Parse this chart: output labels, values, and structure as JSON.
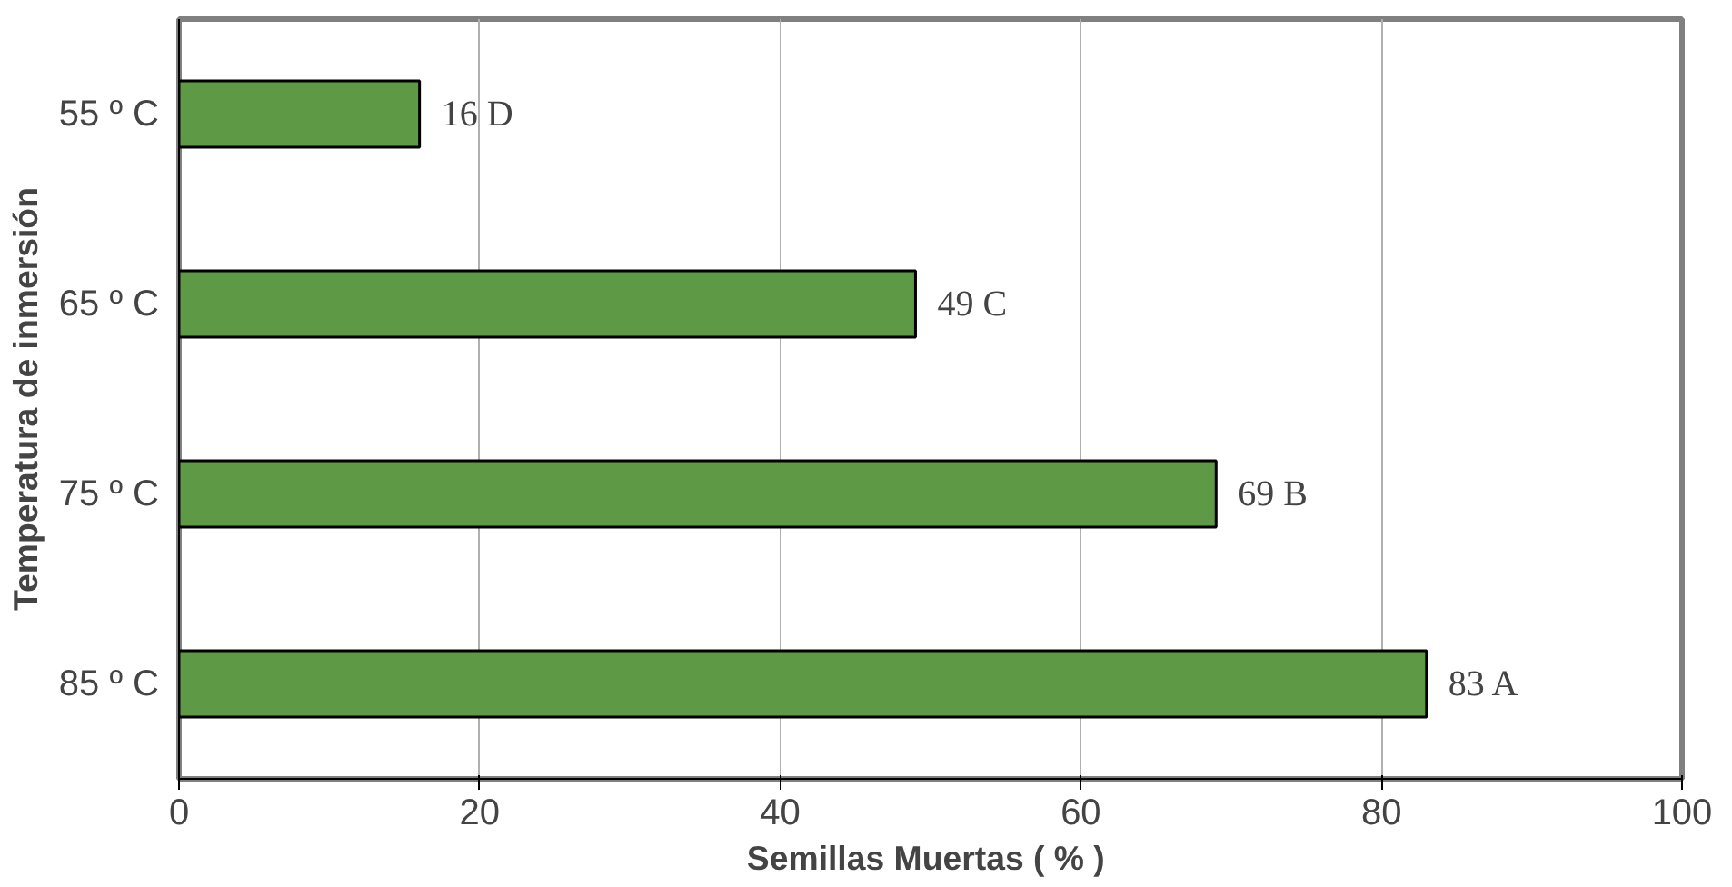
{
  "chart_data": {
    "type": "bar",
    "orientation": "horizontal",
    "xlabel": "Semillas  Muertas ( % )",
    "ylabel": "Temperatura de inmersión",
    "categories": [
      "55 º C",
      "65 º C",
      "75 º C",
      "85 º C"
    ],
    "values": [
      16,
      49,
      69,
      83
    ],
    "value_labels": [
      "16  D",
      "49  C",
      "69  B",
      "83  A"
    ],
    "color": "#5e9a45",
    "xlim": [
      0,
      100
    ],
    "xticks": [
      0,
      20,
      40,
      60,
      80,
      100
    ],
    "grid": "x"
  }
}
